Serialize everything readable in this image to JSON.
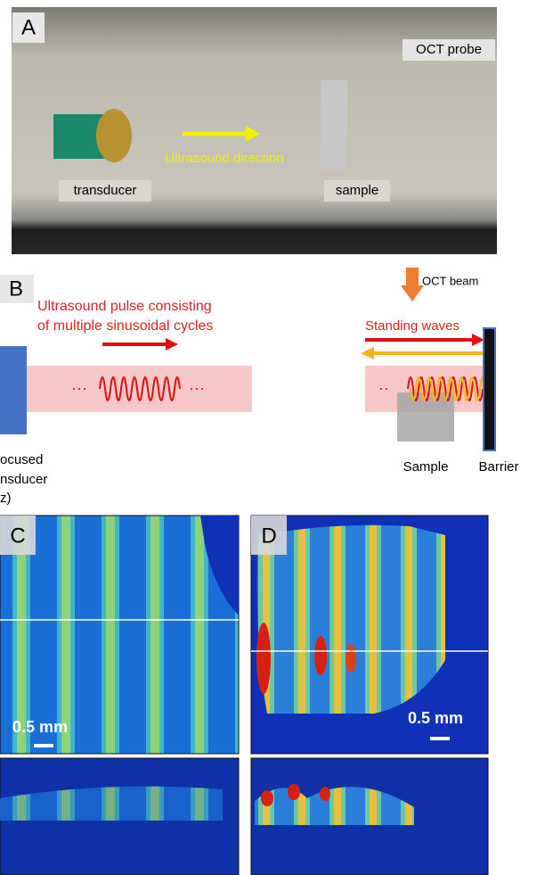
{
  "panel_a": {
    "label": "A",
    "oct_probe": "OCT probe",
    "direction": "Ultrasound direction",
    "transducer": "transducer",
    "sample": "sample"
  },
  "panel_b": {
    "label": "B",
    "pulse_text": [
      "Ultrasound pulse consisting",
      "of multiple sinusoidal cycles"
    ],
    "oct_beam": "OCT beam",
    "standing_waves": "Standing waves",
    "transducer_text": [
      "ocused",
      "nsducer",
      "z)"
    ],
    "sample": "Sample",
    "barrier": "Barrier"
  },
  "panel_c": {
    "label": "C",
    "scale": "0.5 mm"
  },
  "panel_d": {
    "label": "D",
    "scale": "0.5 mm"
  }
}
